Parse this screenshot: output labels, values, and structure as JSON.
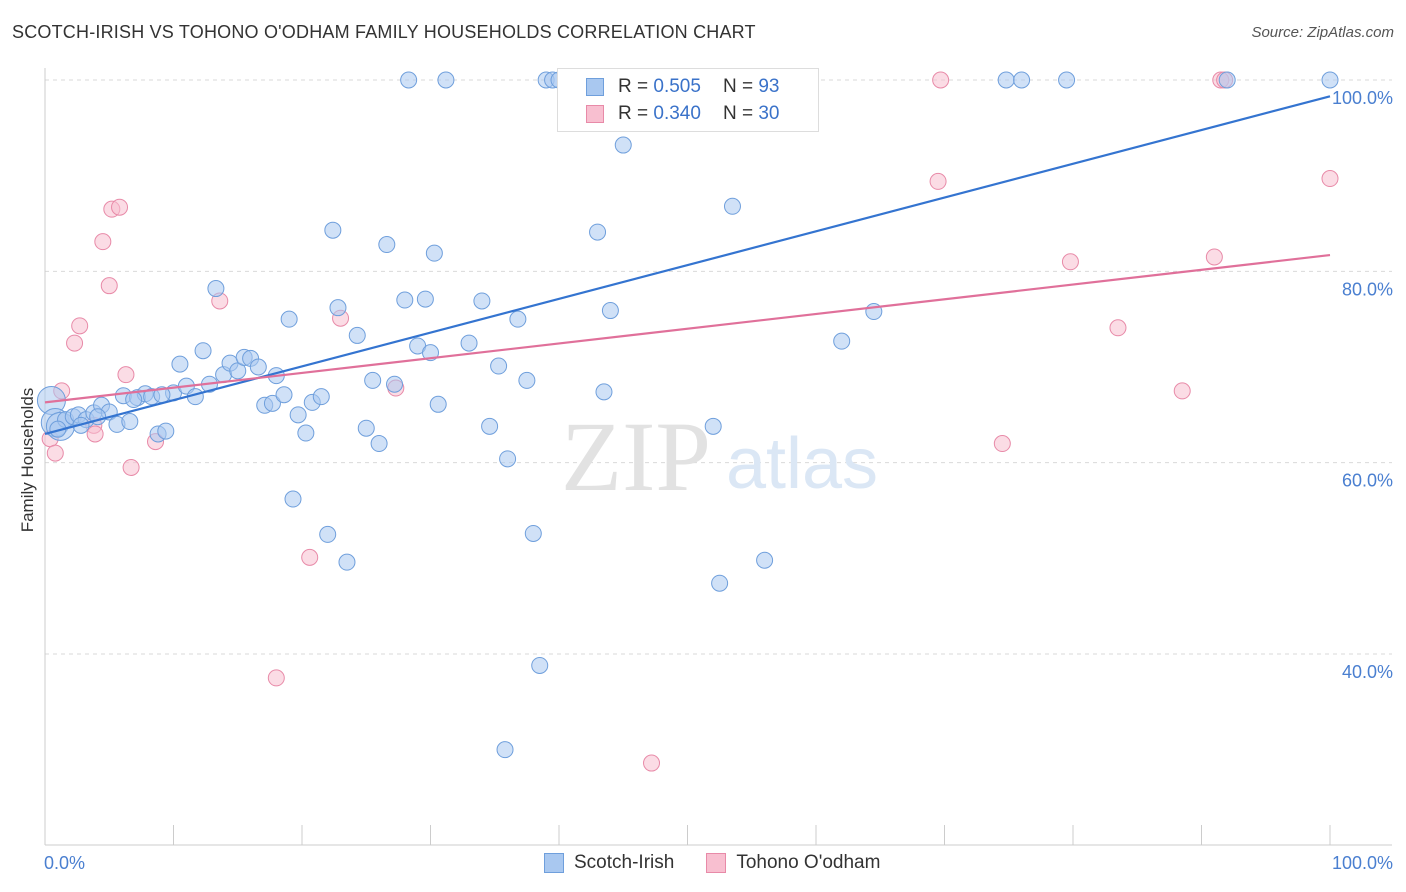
{
  "title": "SCOTCH-IRISH VS TOHONO O'ODHAM FAMILY HOUSEHOLDS CORRELATION CHART",
  "source": "Source: ZipAtlas.com",
  "watermark": {
    "zip": "ZIP",
    "atlas": "atlas"
  },
  "legend": {
    "row1": {
      "r_label": "R =",
      "r_value": "0.505",
      "n_label": "N =",
      "n_value": "93"
    },
    "row2": {
      "r_label": "R =",
      "r_value": "0.340",
      "n_label": "N =",
      "n_value": "30"
    }
  },
  "bottom_legend": {
    "series1": "Scotch-Irish",
    "series2": "Tohono O'odham"
  },
  "colors": {
    "blue_fill": "#a9c8f0",
    "blue_stroke": "#6f9fdc",
    "blue_line": "#3474d0",
    "pink_fill": "#f8bfd0",
    "pink_stroke": "#e88aa8",
    "pink_line": "#e0709a",
    "tick": "#4a7fd0"
  },
  "chart_data": {
    "type": "scatter",
    "title": "SCOTCH-IRISH VS TOHONO O'ODHAM FAMILY HOUSEHOLDS CORRELATION CHART",
    "xlabel": "",
    "ylabel": "Family Households",
    "xlim": [
      0,
      100
    ],
    "ylim": [
      20,
      102
    ],
    "x_tick_labels": [
      "0.0%",
      "100.0%"
    ],
    "y_ticks": [
      40,
      60,
      80,
      100
    ],
    "y_tick_labels": [
      "40.0%",
      "60.0%",
      "80.0%",
      "100.0%"
    ],
    "grid": true,
    "legend_position": "top-center",
    "series": [
      {
        "name": "Scotch-Irish",
        "r": 0.505,
        "n": 93,
        "trend": [
          [
            0,
            63.0
          ],
          [
            100,
            98.3
          ]
        ],
        "points": [
          [
            0.5,
            66.5
          ],
          [
            0.8,
            64.2
          ],
          [
            1.2,
            63.8
          ],
          [
            1.6,
            64.5
          ],
          [
            2.2,
            64.8
          ],
          [
            2.6,
            65.0
          ],
          [
            3.2,
            64.5
          ],
          [
            3.8,
            65.2
          ],
          [
            4.4,
            66.0
          ],
          [
            5.0,
            65.3
          ],
          [
            5.6,
            64.0
          ],
          [
            6.1,
            67.0
          ],
          [
            6.6,
            64.3
          ],
          [
            7.2,
            66.8
          ],
          [
            7.8,
            67.2
          ],
          [
            8.3,
            66.9
          ],
          [
            8.8,
            63.0
          ],
          [
            9.4,
            63.3
          ],
          [
            10.0,
            67.3
          ],
          [
            10.5,
            70.3
          ],
          [
            11.0,
            68.0
          ],
          [
            11.7,
            66.9
          ],
          [
            12.3,
            71.7
          ],
          [
            12.8,
            68.2
          ],
          [
            13.3,
            78.2
          ],
          [
            13.9,
            69.2
          ],
          [
            14.4,
            70.4
          ],
          [
            15.0,
            69.6
          ],
          [
            15.5,
            71.0
          ],
          [
            16.0,
            70.9
          ],
          [
            16.6,
            70.0
          ],
          [
            17.1,
            66.0
          ],
          [
            17.7,
            66.2
          ],
          [
            18.0,
            69.1
          ],
          [
            18.6,
            67.1
          ],
          [
            19.0,
            75.0
          ],
          [
            19.3,
            56.2
          ],
          [
            19.7,
            65.0
          ],
          [
            20.3,
            63.1
          ],
          [
            20.8,
            66.3
          ],
          [
            21.5,
            66.9
          ],
          [
            22.0,
            52.5
          ],
          [
            22.4,
            84.3
          ],
          [
            22.8,
            76.2
          ],
          [
            23.5,
            49.6
          ],
          [
            24.3,
            73.3
          ],
          [
            25.0,
            63.6
          ],
          [
            25.5,
            68.6
          ],
          [
            26.0,
            62.0
          ],
          [
            26.6,
            82.8
          ],
          [
            27.2,
            68.2
          ],
          [
            28.0,
            77.0
          ],
          [
            28.3,
            100
          ],
          [
            29.0,
            72.2
          ],
          [
            29.6,
            77.1
          ],
          [
            30.0,
            71.5
          ],
          [
            30.3,
            81.9
          ],
          [
            30.6,
            66.1
          ],
          [
            31.2,
            100
          ],
          [
            33.0,
            72.5
          ],
          [
            34.0,
            76.9
          ],
          [
            34.6,
            63.8
          ],
          [
            35.3,
            70.1
          ],
          [
            36.0,
            60.4
          ],
          [
            36.8,
            75.0
          ],
          [
            37.5,
            68.6
          ],
          [
            38.0,
            52.6
          ],
          [
            38.5,
            38.8
          ],
          [
            39.0,
            100
          ],
          [
            39.5,
            100
          ],
          [
            40.0,
            100
          ],
          [
            41.0,
            100
          ],
          [
            43.0,
            84.1
          ],
          [
            43.5,
            67.4
          ],
          [
            44.0,
            75.9
          ],
          [
            45.0,
            93.2
          ],
          [
            52.0,
            63.8
          ],
          [
            52.5,
            47.4
          ],
          [
            53.5,
            86.8
          ],
          [
            56.0,
            49.8
          ],
          [
            62.0,
            72.7
          ],
          [
            64.5,
            75.8
          ],
          [
            74.8,
            100
          ],
          [
            76.0,
            100
          ],
          [
            79.5,
            100
          ],
          [
            92.0,
            100
          ],
          [
            100,
            100
          ],
          [
            35.8,
            30.0
          ],
          [
            1.0,
            63.5
          ],
          [
            2.8,
            63.9
          ],
          [
            4.1,
            64.8
          ],
          [
            6.9,
            66.6
          ],
          [
            9.1,
            67.1
          ]
        ]
      },
      {
        "name": "Tohono O'odham",
        "r": 0.34,
        "n": 30,
        "trend": [
          [
            0,
            66.3
          ],
          [
            100,
            81.7
          ]
        ],
        "points": [
          [
            0.4,
            62.5
          ],
          [
            0.8,
            61.0
          ],
          [
            1.3,
            67.5
          ],
          [
            2.3,
            72.5
          ],
          [
            2.7,
            74.3
          ],
          [
            3.8,
            63.9
          ],
          [
            3.9,
            63.0
          ],
          [
            4.5,
            83.1
          ],
          [
            5.0,
            78.5
          ],
          [
            5.2,
            86.5
          ],
          [
            5.8,
            86.7
          ],
          [
            6.3,
            69.2
          ],
          [
            6.7,
            59.5
          ],
          [
            8.6,
            62.2
          ],
          [
            13.6,
            76.9
          ],
          [
            18.0,
            37.5
          ],
          [
            20.6,
            50.1
          ],
          [
            23.0,
            75.1
          ],
          [
            27.3,
            67.8
          ],
          [
            47.2,
            28.6
          ],
          [
            69.5,
            89.4
          ],
          [
            69.7,
            100
          ],
          [
            74.5,
            62.0
          ],
          [
            79.8,
            81.0
          ],
          [
            83.5,
            74.1
          ],
          [
            88.5,
            67.5
          ],
          [
            91.0,
            81.5
          ],
          [
            91.5,
            100
          ],
          [
            100,
            89.7
          ],
          [
            91.8,
            100
          ]
        ]
      }
    ]
  }
}
